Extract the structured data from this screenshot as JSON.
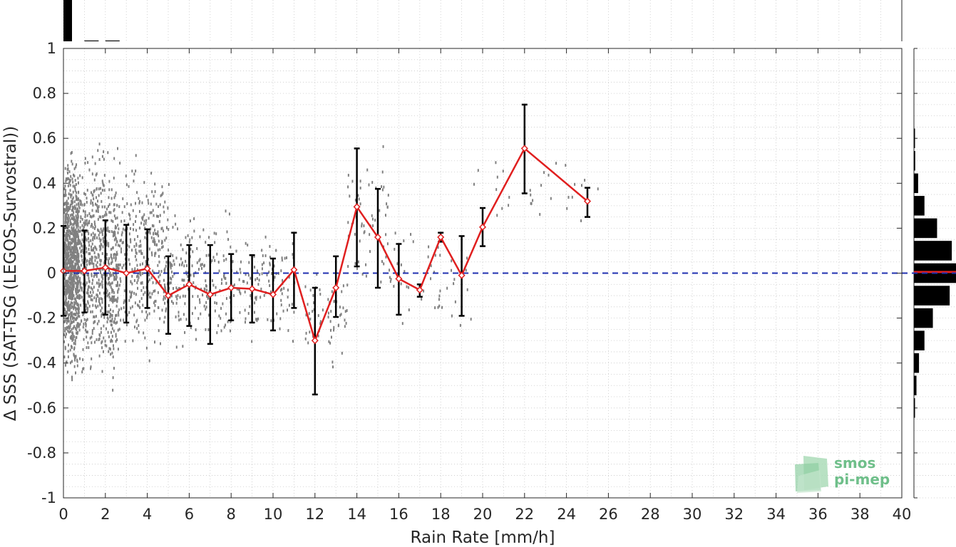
{
  "chart_data": {
    "type": "scatter",
    "title": "",
    "xlabel": "Rain Rate [mm/h]",
    "ylabel": "Δ SSS (SAT-TSG (LEGOS-Survostral))",
    "xlim": [
      0,
      40
    ],
    "ylim": [
      -1,
      1
    ],
    "xticks": [
      0,
      2,
      4,
      6,
      8,
      10,
      12,
      14,
      16,
      18,
      20,
      22,
      24,
      26,
      28,
      30,
      32,
      34,
      36,
      38,
      40
    ],
    "yticks": [
      -1,
      -0.8,
      -0.6,
      -0.4,
      -0.2,
      0,
      0.2,
      0.4,
      0.6,
      0.8,
      1
    ],
    "ytick_labels": [
      "-1",
      "-0.8",
      "-0.6",
      "-0.4",
      "-0.2",
      "0",
      "0.2",
      "0.4",
      "0.6",
      "0.8",
      "1"
    ],
    "grid": true,
    "zero_line_color": "#1f2fb0",
    "mean_line_color": "#e01f1f",
    "error_bar_color": "#000000",
    "scatter_color": "#808080",
    "series": [
      {
        "x": [
          0,
          1,
          2,
          3,
          4,
          5,
          6,
          7,
          8,
          9,
          10,
          11,
          12,
          13,
          14,
          15,
          16,
          17,
          18,
          19,
          20,
          22,
          25
        ],
        "y": [
          0.01,
          0.01,
          0.025,
          0.0,
          0.02,
          -0.1,
          -0.05,
          -0.095,
          -0.065,
          -0.07,
          -0.095,
          0.015,
          -0.3,
          -0.065,
          0.295,
          0.16,
          -0.025,
          -0.075,
          0.16,
          -0.01,
          0.205,
          0.555,
          0.32
        ],
        "err_low": [
          -0.19,
          -0.175,
          -0.185,
          -0.22,
          -0.155,
          -0.27,
          -0.235,
          -0.315,
          -0.21,
          -0.22,
          -0.255,
          -0.155,
          -0.54,
          -0.195,
          0.03,
          -0.065,
          -0.185,
          -0.105,
          0.14,
          -0.19,
          0.12,
          0.355,
          0.25
        ],
        "err_high": [
          0.21,
          0.19,
          0.235,
          0.215,
          0.195,
          0.075,
          0.125,
          0.125,
          0.085,
          0.08,
          0.065,
          0.18,
          -0.065,
          0.075,
          0.555,
          0.375,
          0.13,
          -0.05,
          0.18,
          0.165,
          0.29,
          0.75,
          0.38
        ]
      }
    ],
    "scatter_clusters": [
      {
        "x": [
          0,
          0.7
        ],
        "y": [
          -0.55,
          0.62
        ],
        "n": 900
      },
      {
        "x": [
          0.7,
          2.6
        ],
        "y": [
          -0.6,
          0.68
        ],
        "n": 700
      },
      {
        "x": [
          2.6,
          5
        ],
        "y": [
          -0.45,
          0.6
        ],
        "n": 350
      },
      {
        "x": [
          5,
          8
        ],
        "y": [
          -0.4,
          0.35
        ],
        "n": 200
      },
      {
        "x": [
          8,
          11
        ],
        "y": [
          -0.4,
          0.3
        ],
        "n": 120
      },
      {
        "x": [
          11.5,
          13.5
        ],
        "y": [
          -0.45,
          0.1
        ],
        "n": 60
      },
      {
        "x": [
          13.5,
          15.5
        ],
        "y": [
          -0.2,
          0.65
        ],
        "n": 60
      },
      {
        "x": [
          15.5,
          19.5
        ],
        "y": [
          -0.35,
          0.3
        ],
        "n": 50
      },
      {
        "x": [
          19.5,
          25.5
        ],
        "y": [
          0.1,
          0.62
        ],
        "n": 30
      }
    ],
    "top_histogram": {
      "bins": [
        0,
        1,
        2
      ],
      "values": [
        1.0,
        0.02,
        0.02
      ]
    },
    "right_histogram": {
      "bins": [
        0.6,
        0.5,
        0.4,
        0.3,
        0.2,
        0.1,
        0.0,
        -0.1,
        -0.2,
        -0.3,
        -0.4,
        -0.5,
        -0.6
      ],
      "values": [
        0.01,
        0.03,
        0.1,
        0.25,
        0.55,
        0.9,
        1.0,
        0.85,
        0.45,
        0.25,
        0.12,
        0.06,
        0.02
      ]
    }
  }
}
